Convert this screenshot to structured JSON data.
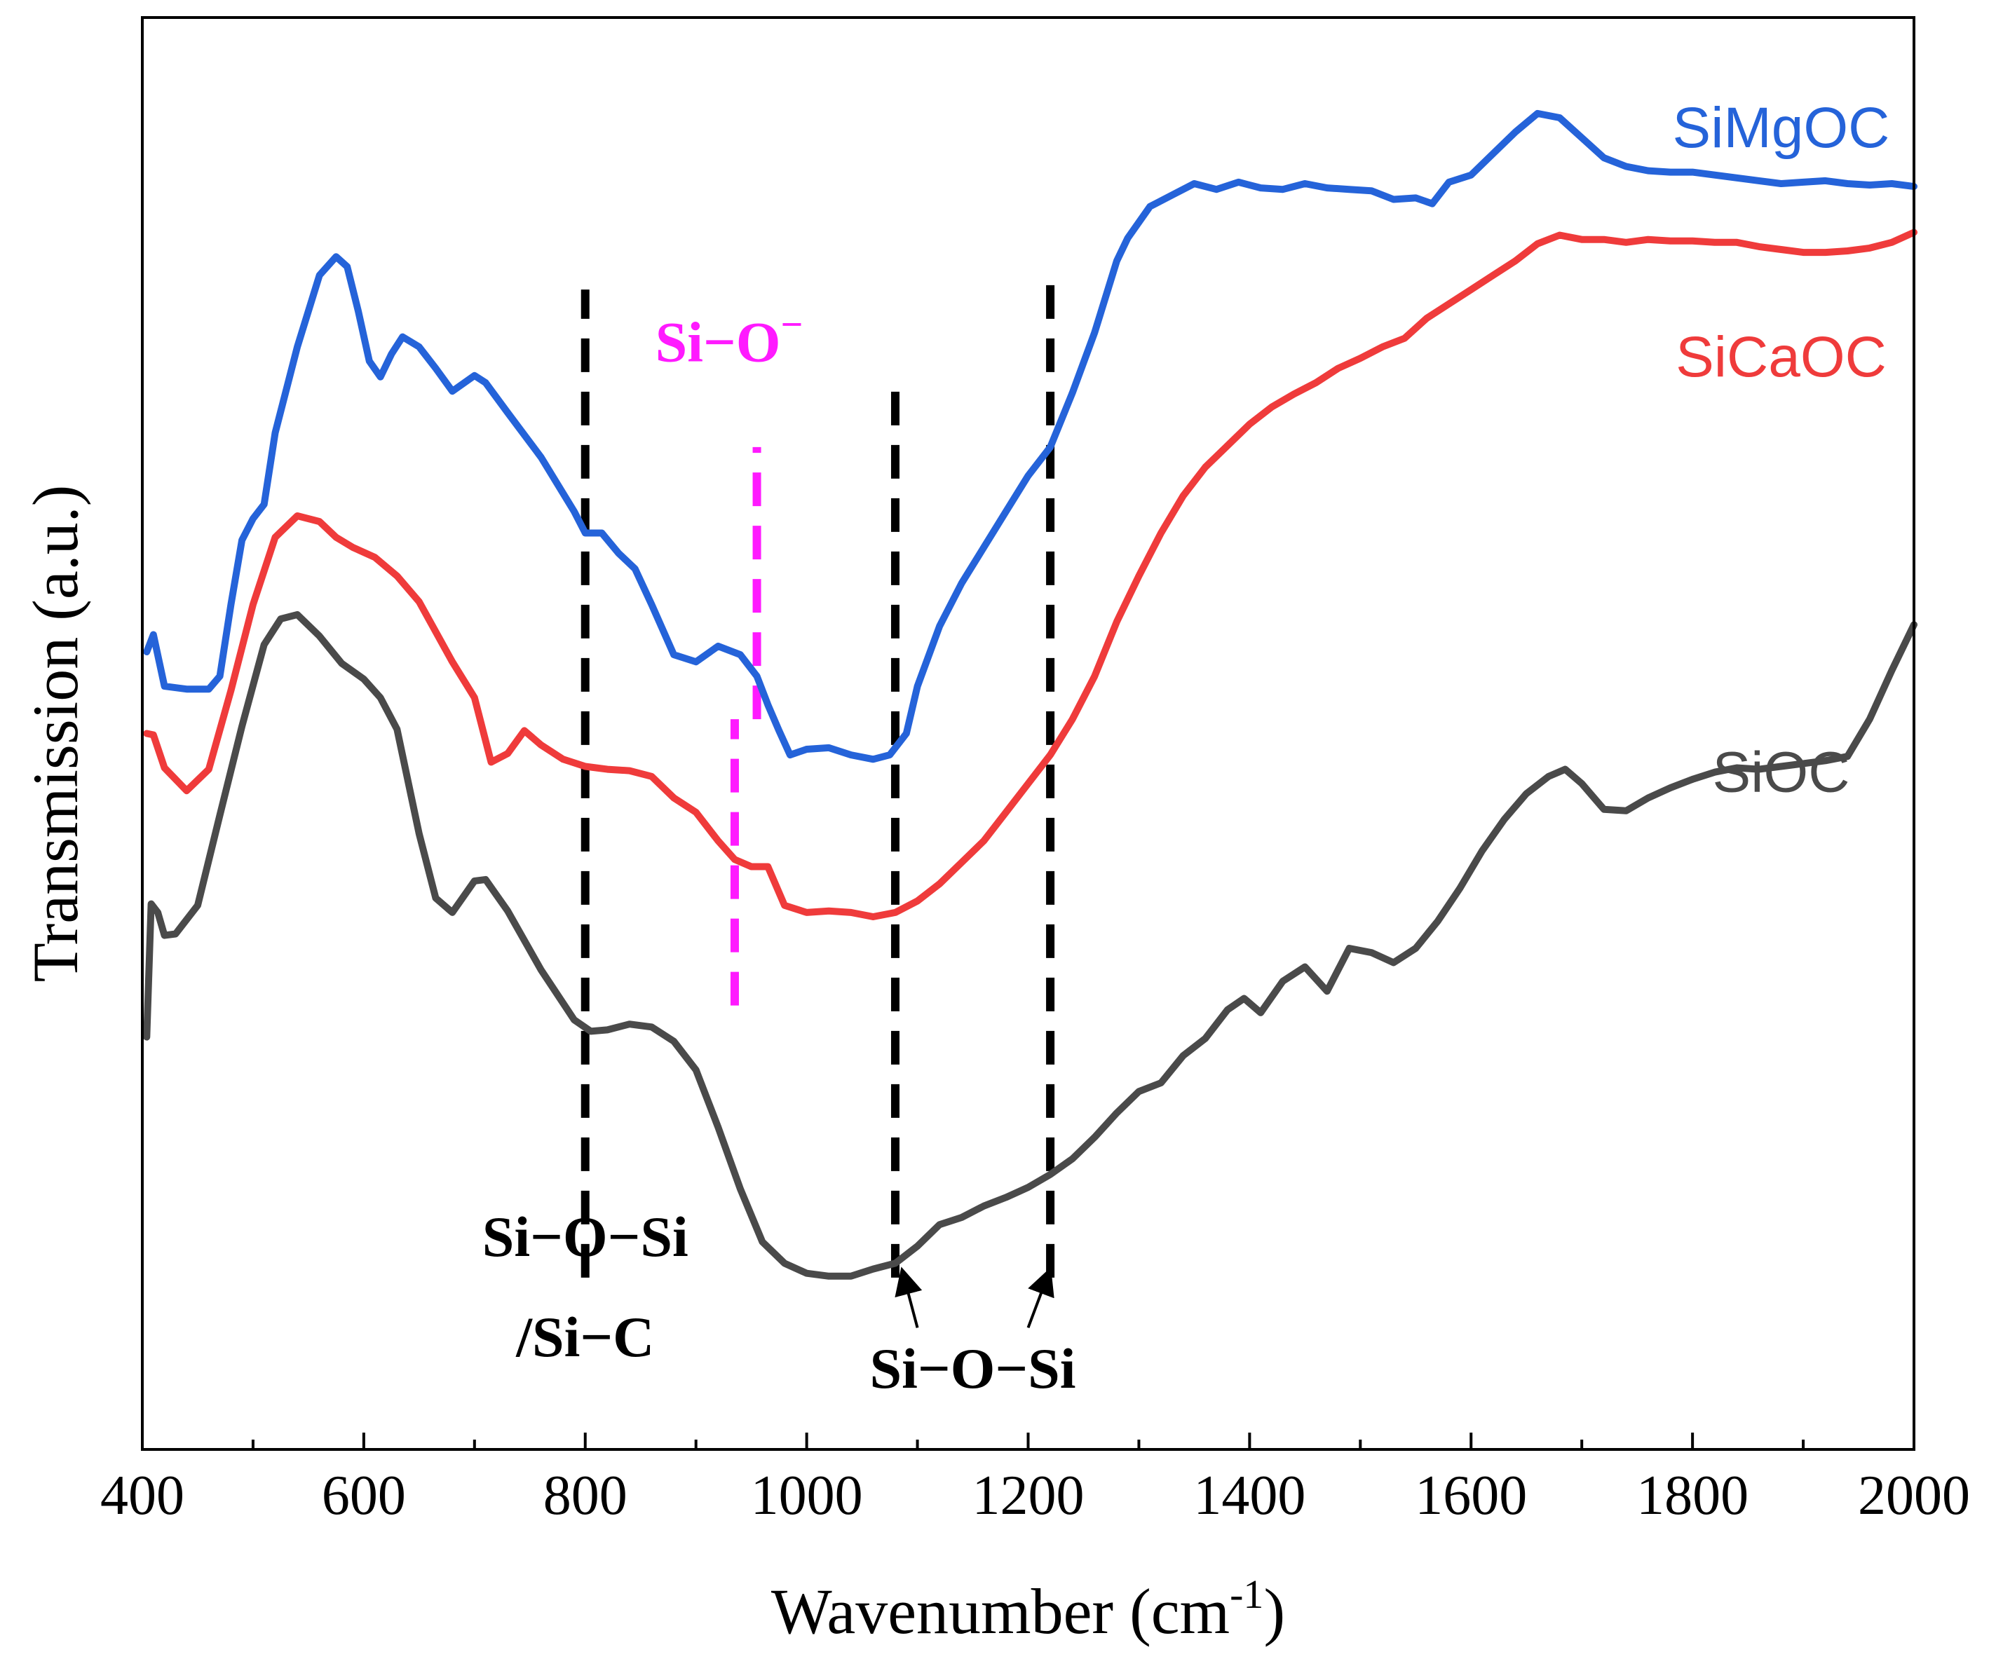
{
  "chart_data": {
    "type": "line",
    "xlabel": "Wavenumber (cm",
    "xlabel_sup": "-1",
    "xlabel_close": ")",
    "ylabel": "Transmission (a.u.)",
    "xlim": [
      400,
      2000
    ],
    "ylim": [
      0,
      100
    ],
    "xticks": [
      400,
      600,
      800,
      1000,
      1200,
      1400,
      1600,
      1800,
      2000
    ],
    "y_ticks_shown": false,
    "grid": false,
    "legend": "inline labels at right end of each curve",
    "series": [
      {
        "name": "SiMgOC",
        "color": "#2563d9",
        "label_pos": [
          1880,
          92
        ],
        "x": [
          404,
          410,
          420,
          440,
          460,
          470,
          480,
          490,
          500,
          510,
          520,
          540,
          560,
          575,
          585,
          595,
          605,
          615,
          625,
          635,
          650,
          665,
          680,
          700,
          710,
          730,
          760,
          790,
          800,
          815,
          830,
          845,
          860,
          880,
          900,
          920,
          940,
          955,
          965,
          975,
          985,
          1000,
          1020,
          1040,
          1060,
          1075,
          1090,
          1100,
          1120,
          1140,
          1160,
          1180,
          1200,
          1220,
          1240,
          1260,
          1280,
          1290,
          1310,
          1330,
          1350,
          1370,
          1390,
          1410,
          1430,
          1450,
          1470,
          1490,
          1510,
          1530,
          1550,
          1565,
          1580,
          1600,
          1620,
          1640,
          1660,
          1680,
          1700,
          1720,
          1740,
          1760,
          1780,
          1800,
          1820,
          1840,
          1860,
          1880,
          1900,
          1920,
          1940,
          1960,
          1980,
          2000
        ],
        "y": [
          55.7,
          56.9,
          53.3,
          53.1,
          53.1,
          54.0,
          59.0,
          63.5,
          65.0,
          66.0,
          71.0,
          77.0,
          82.0,
          83.3,
          82.6,
          79.5,
          76.0,
          74.9,
          76.5,
          77.7,
          77.0,
          75.5,
          73.9,
          75.0,
          74.5,
          72.4,
          69.3,
          65.5,
          64.0,
          64.0,
          62.6,
          61.5,
          59.0,
          55.5,
          55.0,
          56.1,
          55.5,
          54.0,
          52.0,
          50.2,
          48.5,
          48.9,
          49.0,
          48.5,
          48.2,
          48.5,
          50.0,
          53.3,
          57.5,
          60.5,
          63.0,
          65.5,
          68.0,
          70.0,
          73.8,
          78.0,
          83.0,
          84.6,
          86.8,
          87.6,
          88.4,
          88.0,
          88.5,
          88.1,
          88.0,
          88.4,
          88.1,
          88.0,
          87.9,
          87.3,
          87.4,
          87.0,
          88.5,
          89.0,
          90.5,
          92.0,
          93.3,
          93.0,
          91.6,
          90.2,
          89.6,
          89.3,
          89.2,
          89.2,
          89.0,
          88.8,
          88.6,
          88.4,
          88.5,
          88.6,
          88.4,
          88.3,
          88.4,
          88.2
        ]
      },
      {
        "name": "SiCaOC",
        "color": "#ef3b3b",
        "label_pos": [
          1880,
          76
        ],
        "x": [
          404,
          410,
          420,
          440,
          460,
          480,
          500,
          520,
          540,
          560,
          575,
          590,
          610,
          630,
          650,
          680,
          700,
          715,
          730,
          745,
          760,
          780,
          800,
          820,
          840,
          860,
          880,
          900,
          920,
          935,
          950,
          965,
          980,
          1000,
          1020,
          1040,
          1060,
          1080,
          1100,
          1120,
          1140,
          1160,
          1180,
          1200,
          1220,
          1240,
          1260,
          1280,
          1300,
          1320,
          1340,
          1360,
          1380,
          1400,
          1420,
          1440,
          1460,
          1480,
          1500,
          1520,
          1540,
          1560,
          1580,
          1600,
          1620,
          1640,
          1660,
          1680,
          1700,
          1720,
          1740,
          1760,
          1780,
          1800,
          1820,
          1840,
          1860,
          1880,
          1900,
          1920,
          1940,
          1960,
          1980,
          2000
        ],
        "y": [
          50.0,
          49.9,
          47.6,
          46.0,
          47.5,
          53.0,
          59.0,
          63.7,
          65.2,
          64.8,
          63.7,
          63.0,
          62.3,
          61.0,
          59.2,
          55.0,
          52.5,
          48.0,
          48.6,
          50.2,
          49.2,
          48.2,
          47.7,
          47.5,
          47.4,
          47.0,
          45.5,
          44.5,
          42.5,
          41.2,
          40.7,
          40.7,
          38.0,
          37.5,
          37.6,
          37.5,
          37.2,
          37.5,
          38.3,
          39.5,
          41.0,
          42.5,
          44.5,
          46.5,
          48.5,
          51.0,
          54.0,
          57.8,
          61.0,
          64.0,
          66.6,
          68.6,
          70.1,
          71.6,
          72.8,
          73.7,
          74.5,
          75.5,
          76.2,
          77.0,
          77.6,
          79.0,
          80.0,
          81.0,
          82.0,
          83.0,
          84.2,
          84.8,
          84.5,
          84.5,
          84.3,
          84.5,
          84.4,
          84.4,
          84.3,
          84.3,
          84.0,
          83.8,
          83.6,
          83.6,
          83.7,
          83.9,
          84.3,
          85.0
        ]
      },
      {
        "name": "SiOC",
        "color": "#4a4a4a",
        "label_pos": [
          1880,
          47
        ],
        "x": [
          404,
          408,
          414,
          420,
          430,
          450,
          470,
          490,
          510,
          525,
          540,
          560,
          580,
          600,
          615,
          630,
          650,
          665,
          680,
          700,
          710,
          730,
          760,
          790,
          805,
          820,
          840,
          860,
          880,
          900,
          920,
          940,
          960,
          980,
          1000,
          1020,
          1040,
          1060,
          1080,
          1100,
          1120,
          1140,
          1160,
          1180,
          1200,
          1220,
          1240,
          1260,
          1280,
          1300,
          1320,
          1340,
          1360,
          1380,
          1395,
          1410,
          1430,
          1450,
          1470,
          1490,
          1510,
          1530,
          1550,
          1570,
          1590,
          1610,
          1630,
          1650,
          1670,
          1685,
          1700,
          1720,
          1740,
          1760,
          1780,
          1800,
          1820,
          1840,
          1860,
          1880,
          1900,
          1920,
          1940,
          1960,
          1980,
          2000
        ],
        "y": [
          28.8,
          38.1,
          37.5,
          35.9,
          36.0,
          38.0,
          44.3,
          50.5,
          56.2,
          58.0,
          58.3,
          56.8,
          54.9,
          53.8,
          52.5,
          50.3,
          43.0,
          38.5,
          37.5,
          39.7,
          39.8,
          37.6,
          33.5,
          30.0,
          29.2,
          29.3,
          29.7,
          29.5,
          28.5,
          26.5,
          22.5,
          18.2,
          14.5,
          13.0,
          12.3,
          12.1,
          12.1,
          12.6,
          13.0,
          14.2,
          15.7,
          16.2,
          17.0,
          17.6,
          18.3,
          19.2,
          20.3,
          21.8,
          23.5,
          25.0,
          25.6,
          27.5,
          28.7,
          30.7,
          31.5,
          30.5,
          32.7,
          33.7,
          32.0,
          35.0,
          34.7,
          34.0,
          35.0,
          36.9,
          39.2,
          41.8,
          44.0,
          45.8,
          47.0,
          47.5,
          46.5,
          44.7,
          44.6,
          45.5,
          46.2,
          46.8,
          47.3,
          47.6,
          47.5,
          47.7,
          47.9,
          48.1,
          48.4,
          51.0,
          54.4,
          57.6
        ]
      }
    ],
    "reference_lines": [
      {
        "x": 800,
        "y": [
          12.0,
          81.0
        ],
        "color": "#000000"
      },
      {
        "x": 1080,
        "y": [
          12.0,
          74.5
        ],
        "color": "#000000"
      },
      {
        "x": 1220,
        "y": [
          12.0,
          81.5
        ],
        "color": "#000000"
      },
      {
        "x": 955,
        "y": [
          51.0,
          70.0
        ],
        "color": "#ff1aff"
      },
      {
        "x": 935,
        "y": [
          31.0,
          51.0
        ],
        "color": "#ff1aff"
      }
    ],
    "annotations": [
      {
        "text": "Si−O−Si",
        "x": 800,
        "y": 13.5,
        "color": "#000000",
        "align": "middle"
      },
      {
        "text": "/Si−C",
        "x": 800,
        "y": 6.5,
        "color": "#000000",
        "align": "middle"
      },
      {
        "text": "Si−O−Si",
        "x": 1150,
        "y": 4.3,
        "color": "#000000",
        "align": "middle"
      },
      {
        "text": "Si−O",
        "x": 930,
        "y": 76.0,
        "color": "#ff1aff",
        "align": "middle",
        "sup": "−"
      }
    ],
    "arrows": [
      {
        "from": [
          1100,
          8.5
        ],
        "to": [
          1088,
          12.0
        ]
      },
      {
        "from": [
          1200,
          8.5
        ],
        "to": [
          1217,
          12.0
        ]
      }
    ]
  }
}
